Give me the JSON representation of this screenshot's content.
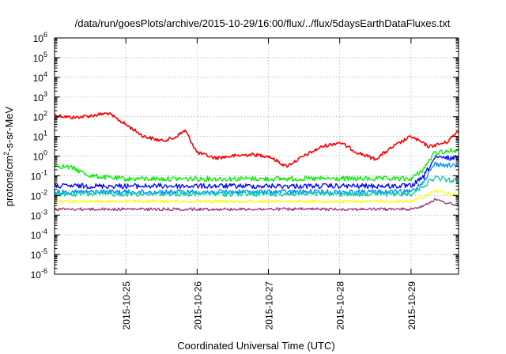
{
  "chart_data": {
    "type": "line",
    "title": "/data/run/goesPlots/archive/2015-10-29/16:00/flux/../flux/5daysEarthDataFluxes.txt",
    "xlabel": "Coordinated Universal Time (UTC)",
    "ylabel": {
      "pre": "protons/cm",
      "sup": "2",
      "post": "-s-sr-MeV"
    },
    "yscale": "log",
    "ylim": [
      1e-06,
      1000000.0
    ],
    "xlim": [
      "2015-10-24T00:00",
      "2015-10-29T16:00"
    ],
    "grid": true,
    "y_ticks": [
      {
        "value": 1e-06,
        "base": "10",
        "exp": "-6"
      },
      {
        "value": 1e-05,
        "base": "10",
        "exp": "-5"
      },
      {
        "value": 0.0001,
        "base": "10",
        "exp": "-4"
      },
      {
        "value": 0.001,
        "base": "10",
        "exp": "-3"
      },
      {
        "value": 0.01,
        "base": "10",
        "exp": "-2"
      },
      {
        "value": 0.1,
        "base": "10",
        "exp": "-1"
      },
      {
        "value": 1,
        "base": "10",
        "exp": "0"
      },
      {
        "value": 10.0,
        "base": "10",
        "exp": "1"
      },
      {
        "value": 100.0,
        "base": "10",
        "exp": "2"
      },
      {
        "value": 1000.0,
        "base": "10",
        "exp": "3"
      },
      {
        "value": 10000.0,
        "base": "10",
        "exp": "4"
      },
      {
        "value": 100000.0,
        "base": "10",
        "exp": "5"
      },
      {
        "value": 1000000.0,
        "base": "10",
        "exp": "6"
      }
    ],
    "x_ticks": [
      "2015-10-25",
      "2015-10-26",
      "2015-10-27",
      "2015-10-28",
      "2015-10-29"
    ],
    "series": [
      {
        "color": "#ff0000",
        "x": [
          "2015-10-24T00:00",
          "2015-10-24T06:00",
          "2015-10-24T12:00",
          "2015-10-24T18:00",
          "2015-10-25T00:00",
          "2015-10-25T06:00",
          "2015-10-25T12:00",
          "2015-10-25T16:00",
          "2015-10-25T20:00",
          "2015-10-26T00:00",
          "2015-10-26T06:00",
          "2015-10-26T12:00",
          "2015-10-26T18:00",
          "2015-10-27T00:00",
          "2015-10-27T06:00",
          "2015-10-27T12:00",
          "2015-10-27T18:00",
          "2015-10-28T00:00",
          "2015-10-28T06:00",
          "2015-10-28T12:00",
          "2015-10-28T18:00",
          "2015-10-29T00:00",
          "2015-10-29T06:00",
          "2015-10-29T12:00",
          "2015-10-29T16:00"
        ],
        "y": [
          120,
          90,
          110,
          150,
          40,
          10,
          6,
          8,
          20,
          1.5,
          0.8,
          1,
          1.2,
          1,
          0.3,
          1,
          3,
          5,
          1.5,
          0.7,
          3,
          10,
          3,
          5,
          20
        ]
      },
      {
        "color": "#00ee00",
        "x": [
          "2015-10-24T00:00",
          "2015-10-24T06:00",
          "2015-10-24T12:00",
          "2015-10-24T18:00",
          "2015-10-25T00:00",
          "2015-10-25T12:00",
          "2015-10-26T00:00",
          "2015-10-26T12:00",
          "2015-10-27T00:00",
          "2015-10-27T12:00",
          "2015-10-28T00:00",
          "2015-10-28T12:00",
          "2015-10-29T00:00",
          "2015-10-29T04:00",
          "2015-10-29T08:00",
          "2015-10-29T16:00"
        ],
        "y": [
          0.35,
          0.25,
          0.1,
          0.08,
          0.07,
          0.07,
          0.07,
          0.07,
          0.07,
          0.07,
          0.07,
          0.07,
          0.07,
          0.2,
          1.5,
          2
        ]
      },
      {
        "color": "#0000ff",
        "x": [
          "2015-10-24T00:00",
          "2015-10-24T12:00",
          "2015-10-25T00:00",
          "2015-10-25T12:00",
          "2015-10-26T00:00",
          "2015-10-26T12:00",
          "2015-10-27T00:00",
          "2015-10-27T12:00",
          "2015-10-28T00:00",
          "2015-10-28T12:00",
          "2015-10-29T00:00",
          "2015-10-29T04:00",
          "2015-10-29T08:00",
          "2015-10-29T16:00"
        ],
        "y": [
          0.03,
          0.03,
          0.03,
          0.03,
          0.03,
          0.03,
          0.03,
          0.03,
          0.03,
          0.03,
          0.03,
          0.08,
          0.8,
          0.8
        ]
      },
      {
        "color": "#0088ff",
        "x": [
          "2015-10-24T00:00",
          "2015-10-24T12:00",
          "2015-10-25T00:00",
          "2015-10-25T12:00",
          "2015-10-26T00:00",
          "2015-10-26T12:00",
          "2015-10-27T00:00",
          "2015-10-27T12:00",
          "2015-10-28T00:00",
          "2015-10-28T12:00",
          "2015-10-29T00:00",
          "2015-10-29T04:00",
          "2015-10-29T08:00",
          "2015-10-29T16:00"
        ],
        "y": [
          0.015,
          0.015,
          0.015,
          0.015,
          0.015,
          0.015,
          0.015,
          0.015,
          0.015,
          0.015,
          0.015,
          0.05,
          0.4,
          0.3
        ]
      },
      {
        "color": "#00ccaa",
        "x": [
          "2015-10-24T00:00",
          "2015-10-24T12:00",
          "2015-10-25T00:00",
          "2015-10-25T12:00",
          "2015-10-26T00:00",
          "2015-10-26T12:00",
          "2015-10-27T00:00",
          "2015-10-27T12:00",
          "2015-10-28T00:00",
          "2015-10-28T12:00",
          "2015-10-29T00:00",
          "2015-10-29T04:00",
          "2015-10-29T08:00",
          "2015-10-29T16:00"
        ],
        "y": [
          0.012,
          0.012,
          0.012,
          0.012,
          0.012,
          0.012,
          0.012,
          0.012,
          0.012,
          0.012,
          0.012,
          0.03,
          0.08,
          0.05
        ]
      },
      {
        "color": "#ffff00",
        "x": [
          "2015-10-24T00:00",
          "2015-10-24T12:00",
          "2015-10-25T00:00",
          "2015-10-25T12:00",
          "2015-10-26T00:00",
          "2015-10-26T12:00",
          "2015-10-27T00:00",
          "2015-10-27T12:00",
          "2015-10-28T00:00",
          "2015-10-28T12:00",
          "2015-10-29T00:00",
          "2015-10-29T04:00",
          "2015-10-29T08:00",
          "2015-10-29T16:00"
        ],
        "y": [
          0.005,
          0.005,
          0.005,
          0.005,
          0.005,
          0.005,
          0.005,
          0.005,
          0.005,
          0.005,
          0.005,
          0.008,
          0.018,
          0.01
        ]
      },
      {
        "color": "#993377",
        "x": [
          "2015-10-24T00:00",
          "2015-10-24T12:00",
          "2015-10-25T00:00",
          "2015-10-25T12:00",
          "2015-10-26T00:00",
          "2015-10-26T12:00",
          "2015-10-27T00:00",
          "2015-10-27T12:00",
          "2015-10-28T00:00",
          "2015-10-28T12:00",
          "2015-10-29T00:00",
          "2015-10-29T04:00",
          "2015-10-29T08:00",
          "2015-10-29T16:00"
        ],
        "y": [
          0.002,
          0.002,
          0.002,
          0.002,
          0.002,
          0.002,
          0.002,
          0.002,
          0.002,
          0.002,
          0.002,
          0.003,
          0.006,
          0.003
        ]
      }
    ]
  }
}
